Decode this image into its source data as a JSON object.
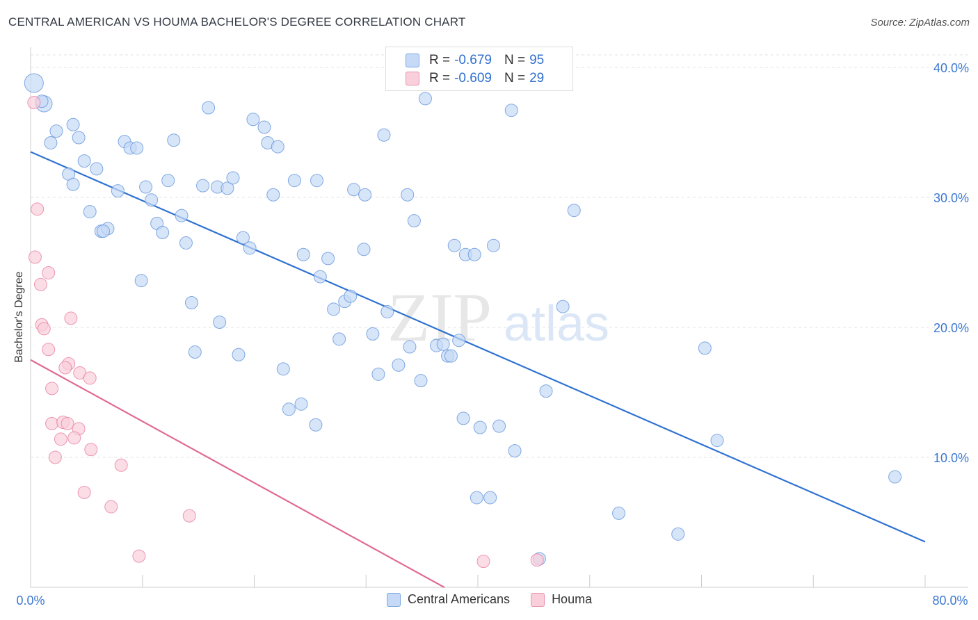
{
  "header": {
    "title": "CENTRAL AMERICAN VS HOUMA BACHELOR'S DEGREE CORRELATION CHART",
    "source": "Source: ZipAtlas.com"
  },
  "watermark": {
    "zip": "ZIP",
    "atlas": "atlas"
  },
  "legend_box": {
    "rows": [
      {
        "r_label": "R =",
        "r_value": "-0.679",
        "n_label": "N =",
        "n_value": "95",
        "color": "#5b8fd8"
      },
      {
        "r_label": "R =",
        "r_value": "-0.609",
        "n_label": "N =",
        "n_value": "29",
        "color": "#e8779d"
      }
    ]
  },
  "bottom_legend": {
    "items": [
      "Central Americans",
      "Houma"
    ]
  },
  "chart_data": {
    "type": "scatter",
    "title": "CENTRAL AMERICAN VS HOUMA BACHELOR'S DEGREE CORRELATION CHART",
    "ylabel": "Bachelor's Degree",
    "xlabel": "",
    "xlim": [
      0,
      80
    ],
    "ylim": [
      0,
      40
    ],
    "x_tick_labels": [
      "0.0%",
      "80.0%"
    ],
    "y_ticks": [
      10,
      20,
      30,
      40
    ],
    "y_tick_labels": [
      "10.0%",
      "20.0%",
      "30.0%",
      "40.0%"
    ],
    "grid": true,
    "colors": {
      "central": "#5b8fd8",
      "houma": "#e8779d",
      "central_fill": "#c6daf7",
      "houma_fill": "#f9cfdc"
    },
    "series": [
      {
        "name": "Central Americans",
        "r": -0.679,
        "n": 95,
        "trend": {
          "x0": 0,
          "y0": 33.5,
          "x1": 80,
          "y1": 3.5
        },
        "points": [
          [
            0.3,
            38.8,
            1.5
          ],
          [
            1.2,
            37.2,
            1.3
          ],
          [
            1.8,
            34.2,
            1
          ],
          [
            3.8,
            35.6,
            1
          ],
          [
            2.3,
            35.1,
            1
          ],
          [
            4.3,
            34.6,
            1
          ],
          [
            3.4,
            31.8,
            1
          ],
          [
            4.8,
            32.8,
            1
          ],
          [
            5.9,
            32.2,
            1
          ],
          [
            3.8,
            31.0,
            1
          ],
          [
            5.3,
            28.9,
            1
          ],
          [
            6.3,
            27.4,
            1
          ],
          [
            6.9,
            27.6,
            1
          ],
          [
            6.5,
            27.4,
            1
          ],
          [
            8.4,
            34.3,
            1
          ],
          [
            8.9,
            33.8,
            1
          ],
          [
            9.5,
            33.8,
            1
          ],
          [
            7.8,
            30.5,
            1
          ],
          [
            10.3,
            30.8,
            1
          ],
          [
            10.8,
            29.8,
            1
          ],
          [
            11.3,
            28.0,
            1
          ],
          [
            11.8,
            27.3,
            1
          ],
          [
            12.3,
            31.3,
            1
          ],
          [
            12.8,
            34.4,
            1
          ],
          [
            13.5,
            28.6,
            1
          ],
          [
            13.9,
            26.5,
            1
          ],
          [
            15.4,
            30.9,
            1
          ],
          [
            15.9,
            36.9,
            1
          ],
          [
            16.7,
            30.8,
            1
          ],
          [
            17.6,
            30.7,
            1
          ],
          [
            18.1,
            31.5,
            1
          ],
          [
            19.0,
            26.9,
            1
          ],
          [
            19.6,
            26.1,
            1
          ],
          [
            19.9,
            36.0,
            1
          ],
          [
            20.9,
            35.4,
            1
          ],
          [
            21.2,
            34.2,
            1
          ],
          [
            22.1,
            33.9,
            1
          ],
          [
            21.7,
            30.2,
            1
          ],
          [
            9.9,
            23.6,
            1
          ],
          [
            14.4,
            21.9,
            1
          ],
          [
            14.7,
            18.1,
            1
          ],
          [
            16.9,
            20.4,
            1
          ],
          [
            18.6,
            17.9,
            1
          ],
          [
            22.6,
            16.8,
            1
          ],
          [
            23.1,
            13.7,
            1
          ],
          [
            23.6,
            31.3,
            1
          ],
          [
            24.2,
            14.1,
            1
          ],
          [
            24.4,
            25.6,
            1
          ],
          [
            25.6,
            31.3,
            1
          ],
          [
            25.5,
            12.5,
            1
          ],
          [
            25.9,
            23.9,
            1
          ],
          [
            26.6,
            25.3,
            1
          ],
          [
            27.1,
            21.4,
            1
          ],
          [
            27.6,
            19.1,
            1
          ],
          [
            28.1,
            22.0,
            1
          ],
          [
            28.6,
            22.4,
            1
          ],
          [
            28.9,
            30.6,
            1
          ],
          [
            29.8,
            26.0,
            1
          ],
          [
            29.9,
            30.2,
            1
          ],
          [
            30.6,
            19.5,
            1
          ],
          [
            31.1,
            16.4,
            1
          ],
          [
            31.6,
            34.8,
            1
          ],
          [
            31.9,
            21.2,
            1
          ],
          [
            32.9,
            17.1,
            1
          ],
          [
            33.7,
            30.2,
            1
          ],
          [
            33.9,
            18.5,
            1
          ],
          [
            34.3,
            28.2,
            1
          ],
          [
            34.9,
            15.9,
            1
          ],
          [
            35.3,
            37.6,
            1
          ],
          [
            36.3,
            18.6,
            1
          ],
          [
            36.9,
            18.7,
            1
          ],
          [
            37.3,
            17.8,
            1
          ],
          [
            37.6,
            17.8,
            1
          ],
          [
            37.9,
            26.3,
            1
          ],
          [
            38.3,
            19.0,
            1
          ],
          [
            38.7,
            13.0,
            1
          ],
          [
            38.9,
            25.6,
            1
          ],
          [
            39.7,
            25.6,
            1
          ],
          [
            40.2,
            12.3,
            1
          ],
          [
            39.9,
            6.9,
            1
          ],
          [
            41.1,
            6.9,
            1
          ],
          [
            41.4,
            26.3,
            1
          ],
          [
            41.9,
            12.4,
            1
          ],
          [
            43.3,
            10.5,
            1
          ],
          [
            43.0,
            36.7,
            1
          ],
          [
            46.1,
            15.1,
            1
          ],
          [
            47.6,
            21.6,
            1
          ],
          [
            48.6,
            29.0,
            1
          ],
          [
            52.6,
            5.7,
            1
          ],
          [
            57.9,
            4.1,
            1
          ],
          [
            60.3,
            18.4,
            1
          ],
          [
            61.4,
            11.3,
            1
          ],
          [
            77.3,
            8.5,
            1
          ],
          [
            45.5,
            2.2,
            1
          ],
          [
            1.0,
            37.4,
            1
          ]
        ]
      },
      {
        "name": "Houma",
        "r": -0.609,
        "n": 29,
        "trend": {
          "x0": 0,
          "y0": 17.5,
          "x1": 37,
          "y1": 0
        },
        "points": [
          [
            0.3,
            37.3,
            1
          ],
          [
            0.6,
            29.1,
            1
          ],
          [
            0.4,
            25.4,
            1
          ],
          [
            0.9,
            23.3,
            1
          ],
          [
            1.6,
            24.2,
            1
          ],
          [
            1.0,
            20.2,
            1
          ],
          [
            1.2,
            19.9,
            1
          ],
          [
            1.6,
            18.3,
            1
          ],
          [
            3.6,
            20.7,
            1
          ],
          [
            3.4,
            17.2,
            1
          ],
          [
            3.1,
            16.9,
            1
          ],
          [
            4.4,
            16.5,
            1
          ],
          [
            5.3,
            16.1,
            1
          ],
          [
            1.9,
            15.3,
            1
          ],
          [
            1.9,
            12.6,
            1
          ],
          [
            2.9,
            12.7,
            1
          ],
          [
            3.3,
            12.6,
            1
          ],
          [
            4.3,
            12.2,
            1
          ],
          [
            2.7,
            11.4,
            1
          ],
          [
            3.9,
            11.5,
            1
          ],
          [
            5.4,
            10.6,
            1
          ],
          [
            2.2,
            10.0,
            1
          ],
          [
            8.1,
            9.4,
            1
          ],
          [
            4.8,
            7.3,
            1
          ],
          [
            7.2,
            6.2,
            1
          ],
          [
            14.2,
            5.5,
            1
          ],
          [
            9.7,
            2.4,
            1
          ],
          [
            40.5,
            2.0,
            1
          ],
          [
            45.3,
            2.1,
            1
          ]
        ]
      }
    ]
  }
}
